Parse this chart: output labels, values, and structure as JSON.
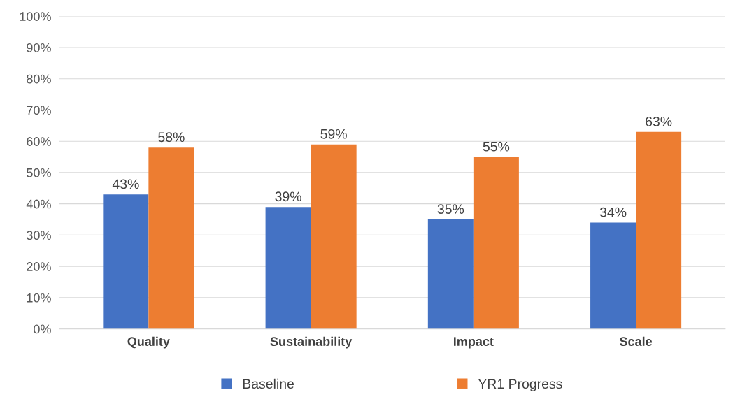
{
  "chart_data": {
    "type": "bar",
    "categories": [
      "Quality",
      "Sustainability",
      "Impact",
      "Scale"
    ],
    "series": [
      {
        "name": "Baseline",
        "color": "#4472c4",
        "values": [
          43,
          39,
          35,
          34
        ],
        "value_labels": [
          "43%",
          "39%",
          "35%",
          "34%"
        ]
      },
      {
        "name": "YR1 Progress",
        "color": "#ed7d31",
        "values": [
          58,
          59,
          55,
          63
        ],
        "value_labels": [
          "58%",
          "59%",
          "55%",
          "63%"
        ]
      }
    ],
    "ylim": [
      0,
      100
    ],
    "yticks": [
      {
        "value": 0,
        "label": "0%"
      },
      {
        "value": 10,
        "label": "10%"
      },
      {
        "value": 20,
        "label": "20%"
      },
      {
        "value": 30,
        "label": "30%"
      },
      {
        "value": 40,
        "label": "40%"
      },
      {
        "value": 50,
        "label": "50%"
      },
      {
        "value": 60,
        "label": "60%"
      },
      {
        "value": 70,
        "label": "70%"
      },
      {
        "value": 80,
        "label": "80%"
      },
      {
        "value": 90,
        "label": "90%"
      },
      {
        "value": 100,
        "label": "100%"
      }
    ],
    "grid": "y",
    "legend": "bottom"
  }
}
